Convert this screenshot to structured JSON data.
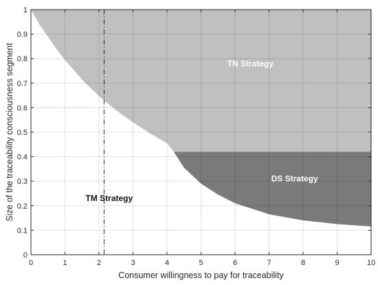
{
  "chart_data": {
    "type": "area",
    "title": "",
    "xlabel": "Consumer willingness to pay for traceability",
    "ylabel": "Size of the traceability consciousness segment",
    "xlim": [
      0,
      10
    ],
    "ylim": [
      0,
      1
    ],
    "x_ticks": [
      "0",
      "1",
      "2",
      "3",
      "4",
      "5",
      "6",
      "7",
      "8",
      "9",
      "10"
    ],
    "y_ticks": [
      "0",
      "0.1",
      "0.2",
      "0.3",
      "0.4",
      "0.5",
      "0.6",
      "0.7",
      "0.8",
      "0.9",
      "1"
    ],
    "grid": true,
    "series": [
      {
        "color": "#c0c0c0",
        "x": [
          0,
          0.25,
          0.5,
          0.75,
          1,
          1.25,
          1.5,
          1.75,
          2,
          2.15,
          2.5,
          3,
          3.5,
          4,
          4.2,
          10
        ],
        "y": [
          1.0,
          0.94,
          0.89,
          0.84,
          0.795,
          0.755,
          0.715,
          0.68,
          0.648,
          0.63,
          0.59,
          0.54,
          0.495,
          0.455,
          0.42,
          0.42
        ]
      },
      {
        "color": "#7a7a7a",
        "x": [
          4.2,
          4.5,
          5,
          5.5,
          6,
          7,
          8,
          9,
          10
        ],
        "y": [
          0.42,
          0.355,
          0.29,
          0.245,
          0.21,
          0.165,
          0.14,
          0.125,
          0.115
        ]
      }
    ],
    "vline": {
      "x": 2.15,
      "style": "dash-dot",
      "color": "#222222"
    },
    "annotations": [
      {
        "text": "TN Strategy",
        "x": 6.45,
        "y": 0.78,
        "color": "#ffffff"
      },
      {
        "text": "DS Strategy",
        "x": 7.75,
        "y": 0.31,
        "color": "#ffffff"
      },
      {
        "text": "TM Strategy",
        "x": 2.3,
        "y": 0.23,
        "color": "#111111"
      }
    ]
  }
}
